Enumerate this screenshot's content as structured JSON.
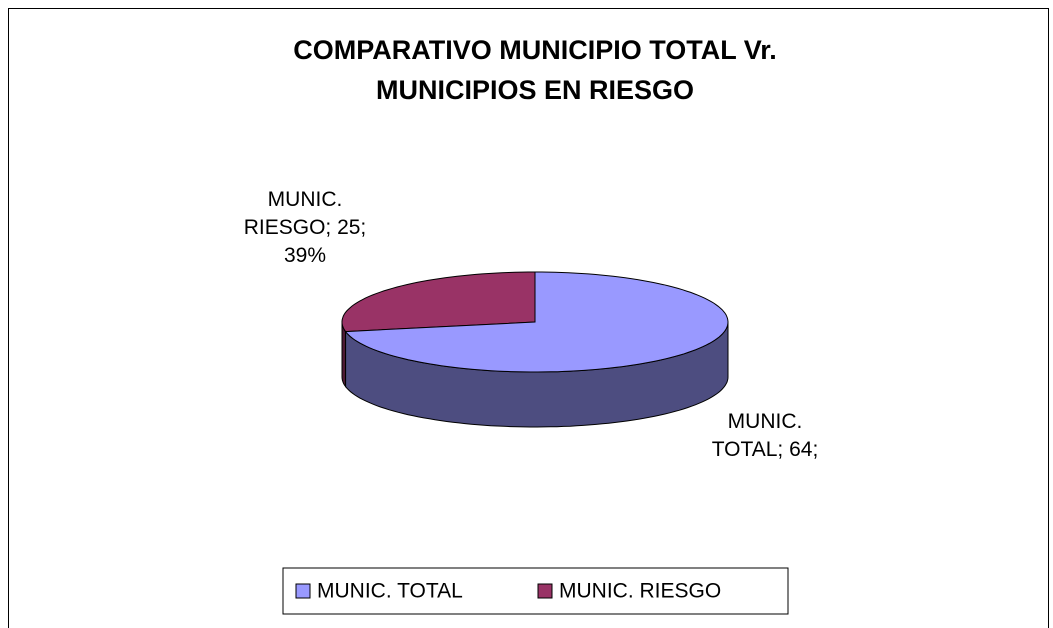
{
  "chart_data": {
    "type": "pie",
    "title": "COMPARATIVO MUNICIPIO TOTAL Vr. MUNICIPIOS EN RIESGO",
    "categories": [
      "MUNIC. TOTAL",
      "MUNIC. RIESGO"
    ],
    "values": [
      64,
      25
    ],
    "value_labels": [
      "MUNIC. TOTAL; 64;",
      "MUNIC. RIESGO; 25; 39%"
    ],
    "colors": [
      "#9999ff",
      "#993366"
    ],
    "legend": "bottom"
  }
}
